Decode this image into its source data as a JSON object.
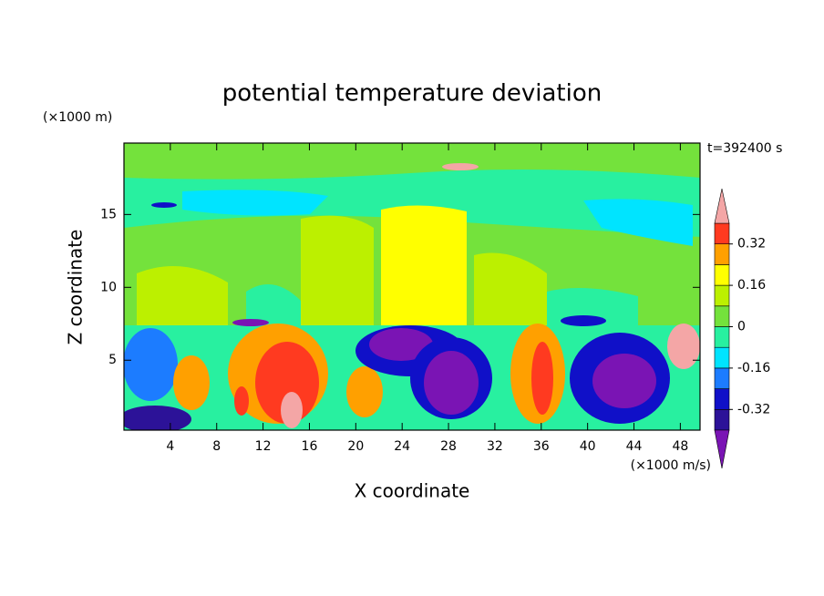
{
  "chart_data": {
    "type": "contour",
    "title": "potential temperature deviation",
    "x_label": "X coordinate",
    "y_label": "Z coordinate",
    "x_unit": "(×1000 m/s)",
    "y_unit": "(×1000 m)",
    "annotation": "t=392400 s",
    "xlim": [
      0,
      49.7
    ],
    "xticks": [
      4,
      8,
      12,
      16,
      20,
      24,
      28,
      32,
      36,
      40,
      44,
      48
    ],
    "ylim": [
      0.2,
      19.9
    ],
    "yticks": [
      5,
      10,
      15
    ],
    "colorbar": {
      "levels": [
        -0.4,
        -0.32,
        -0.24,
        -0.16,
        -0.08,
        0,
        0.08,
        0.16,
        0.24,
        0.32,
        0.4
      ],
      "ticks": [
        -0.32,
        -0.16,
        0,
        0.16,
        0.32
      ],
      "colors": [
        "#7a14b4",
        "#2c1298",
        "#1010c8",
        "#1c7cff",
        "#00e4ff",
        "#28f0a0",
        "#74e23c",
        "#bcf000",
        "#ffff00",
        "#ffa000",
        "#ff3a20",
        "#f4a6a6"
      ]
    }
  }
}
